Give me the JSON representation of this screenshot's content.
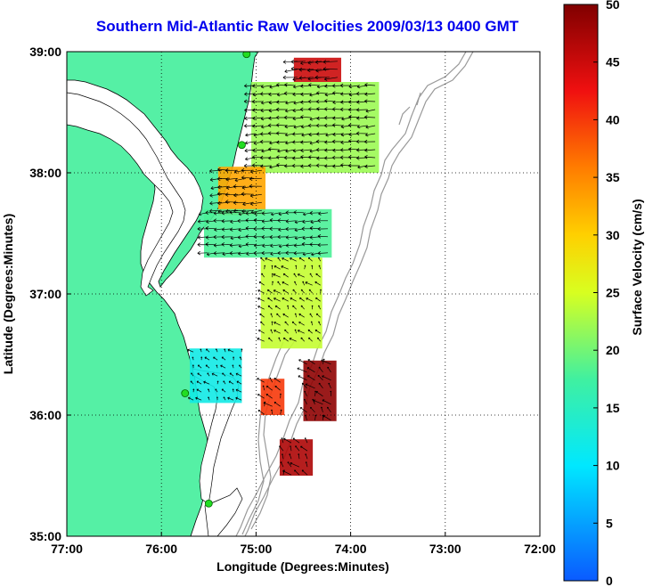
{
  "title": "Southern Mid-Atlantic Raw Velocities 2009/03/13 0400 GMT",
  "x_axis": {
    "label": "Longitude (Degrees:Minutes)",
    "ticks": [
      "77:00",
      "76:00",
      "75:00",
      "74:00",
      "73:00",
      "72:00"
    ],
    "range": [
      -77,
      -72
    ]
  },
  "y_axis": {
    "label": "Latitude (Degrees:Minutes)",
    "ticks": [
      "35:00",
      "36:00",
      "37:00",
      "38:00",
      "39:00"
    ],
    "range": [
      35,
      39
    ]
  },
  "colorbar": {
    "label": "Surface Velocity (cm/s)",
    "ticks": [
      "0",
      "5",
      "10",
      "15",
      "20",
      "25",
      "30",
      "35",
      "40",
      "45",
      "50"
    ],
    "range": [
      0,
      50
    ]
  },
  "colors": {
    "land": "#55f0a5",
    "water": "#ffffff",
    "coast": "#000000",
    "bathymetry": "#999999",
    "grid": "#000000",
    "title": "#0000ee"
  },
  "layers": {
    "land": "Delmarva / Virginia / North Carolina coast",
    "grid": "dotted lat/lon lines",
    "vectors": "surface current arrows"
  },
  "velocity_regions": [
    {
      "lon_range": [
        -74.6,
        -74.1
      ],
      "lat_range": [
        38.75,
        38.95
      ],
      "speed": 45
    },
    {
      "lon_range": [
        -75.05,
        -73.7
      ],
      "lat_range": [
        38.0,
        38.75
      ],
      "speed": 22
    },
    {
      "lon_range": [
        -75.4,
        -74.9
      ],
      "lat_range": [
        37.65,
        38.05
      ],
      "speed": 33
    },
    {
      "lon_range": [
        -75.55,
        -74.2
      ],
      "lat_range": [
        37.3,
        37.7
      ],
      "speed": 18
    },
    {
      "lon_range": [
        -74.95,
        -74.3
      ],
      "lat_range": [
        36.55,
        37.3
      ],
      "speed": 24
    },
    {
      "lon_range": [
        -75.7,
        -75.15
      ],
      "lat_range": [
        36.1,
        36.55
      ],
      "speed": 12
    },
    {
      "lon_range": [
        -74.5,
        -74.15
      ],
      "lat_range": [
        35.95,
        36.45
      ],
      "speed": 49
    },
    {
      "lon_range": [
        -74.95,
        -74.7
      ],
      "lat_range": [
        36.0,
        36.3
      ],
      "speed": 40
    },
    {
      "lon_range": [
        -74.75,
        -74.4
      ],
      "lat_range": [
        35.5,
        35.8
      ],
      "speed": 47
    }
  ],
  "stations": [
    {
      "lon": -75.1,
      "lat": 38.98
    },
    {
      "lon": -75.15,
      "lat": 38.23
    },
    {
      "lon": -75.75,
      "lat": 36.18
    },
    {
      "lon": -75.5,
      "lat": 35.27
    }
  ]
}
